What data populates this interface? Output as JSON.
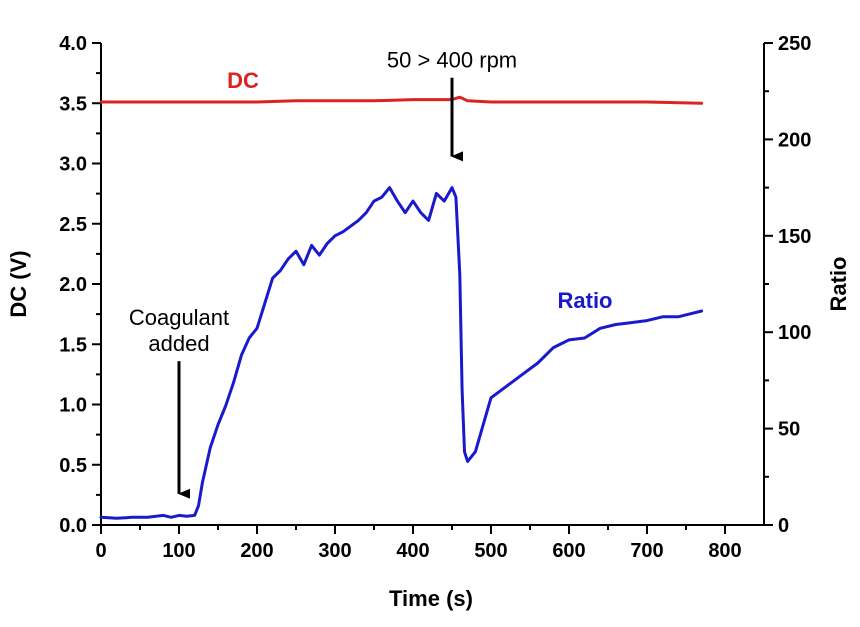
{
  "chart_data": {
    "type": "line",
    "title": "",
    "xlabel": "Time (s)",
    "ylabel_left": "DC (V)",
    "ylabel_right": "Ratio",
    "xlim": [
      0,
      850
    ],
    "ylim_left": [
      0,
      4.0
    ],
    "ylim_right": [
      0,
      250
    ],
    "x_ticks": [
      0,
      100,
      200,
      300,
      400,
      500,
      600,
      700,
      800
    ],
    "y_ticks_left": [
      0.0,
      0.5,
      1.0,
      1.5,
      2.0,
      2.5,
      3.0,
      3.5,
      4.0
    ],
    "y_ticks_right": [
      0,
      50,
      100,
      150,
      200,
      250
    ],
    "grid": false,
    "series": [
      {
        "name": "DC",
        "axis": "left",
        "color": "#dd2222",
        "x": [
          0,
          50,
          100,
          150,
          200,
          250,
          300,
          350,
          400,
          440,
          450,
          460,
          470,
          500,
          550,
          600,
          650,
          700,
          770
        ],
        "values": [
          3.51,
          3.51,
          3.51,
          3.51,
          3.51,
          3.52,
          3.52,
          3.52,
          3.53,
          3.53,
          3.53,
          3.55,
          3.52,
          3.51,
          3.51,
          3.51,
          3.51,
          3.51,
          3.5
        ]
      },
      {
        "name": "Ratio",
        "axis": "right",
        "color": "#1a1acc",
        "x": [
          0,
          20,
          40,
          60,
          80,
          90,
          100,
          110,
          120,
          125,
          130,
          140,
          150,
          160,
          170,
          180,
          190,
          200,
          210,
          220,
          230,
          240,
          250,
          260,
          270,
          280,
          290,
          300,
          310,
          320,
          330,
          340,
          350,
          360,
          370,
          380,
          390,
          400,
          410,
          420,
          430,
          440,
          450,
          455,
          460,
          463,
          466,
          470,
          480,
          490,
          500,
          520,
          540,
          560,
          580,
          600,
          620,
          640,
          660,
          680,
          700,
          720,
          740,
          760,
          770
        ],
        "values": [
          4,
          3.5,
          4,
          4,
          5,
          4,
          5,
          4.5,
          5,
          10,
          22,
          40,
          52,
          62,
          74,
          88,
          97,
          102,
          115,
          128,
          132,
          138,
          142,
          135,
          145,
          140,
          146,
          150,
          152,
          155,
          158,
          162,
          168,
          170,
          175,
          168,
          162,
          168,
          162,
          158,
          172,
          168,
          175,
          170,
          130,
          70,
          38,
          33,
          38,
          52,
          66,
          72,
          78,
          84,
          92,
          96,
          97,
          102,
          104,
          105,
          106,
          108,
          108,
          110,
          111
        ]
      }
    ],
    "annotations": [
      {
        "text_lines": [
          "Coagulant",
          "added"
        ],
        "arrow_x": 100,
        "arrow_from_ratio": 85,
        "arrow_to_ratio": 10
      },
      {
        "text_lines": [
          "50 > 400 rpm"
        ],
        "arrow_x": 450,
        "arrow_from_ratio": 232,
        "arrow_to_ratio": 185
      }
    ]
  }
}
